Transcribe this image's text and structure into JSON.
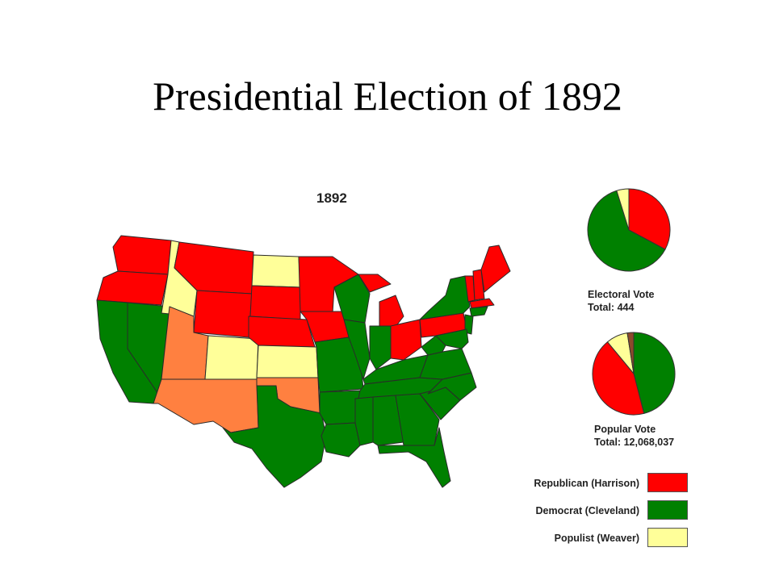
{
  "slide": {
    "title": "Presidential Election of 1892"
  },
  "map": {
    "year": "1892",
    "colors": {
      "republican": "#ff0000",
      "democrat": "#008000",
      "populist": "#ffff99",
      "territory": "#ff8040"
    }
  },
  "electoral_vote": {
    "label": "Electoral Vote",
    "total_label": "Total: 444",
    "shares": [
      {
        "party": "republican",
        "fraction": 0.328
      },
      {
        "party": "democrat",
        "fraction": 0.624
      },
      {
        "party": "populist",
        "fraction": 0.048
      }
    ]
  },
  "popular_vote": {
    "label": "Popular Vote",
    "total_label": "Total: 12,068,037",
    "shares": [
      {
        "party": "democrat",
        "fraction": 0.46
      },
      {
        "party": "republican",
        "fraction": 0.43
      },
      {
        "party": "populist",
        "fraction": 0.085
      },
      {
        "party": "other",
        "fraction": 0.025
      }
    ],
    "other_color": "#8b4a2b"
  },
  "legend": [
    {
      "label": "Republican (Harrison)",
      "party": "republican"
    },
    {
      "label": "Democrat (Cleveland)",
      "party": "democrat"
    },
    {
      "label": "Populist (Weaver)",
      "party": "populist"
    }
  ]
}
